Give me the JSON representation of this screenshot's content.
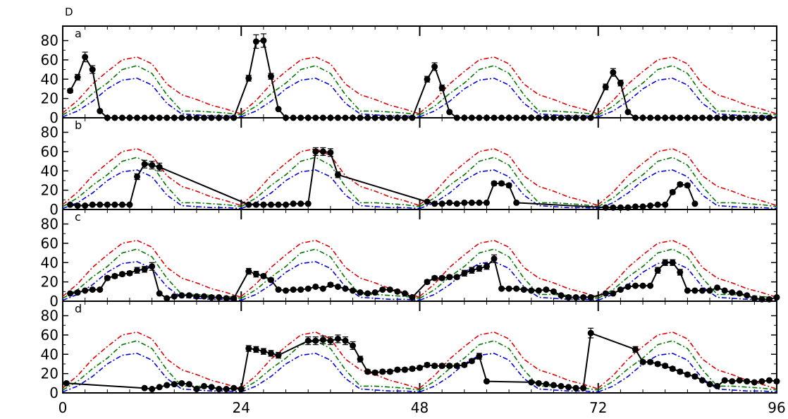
{
  "figure_label": "D",
  "colors": {
    "red": "#dd0000",
    "green": "#007700",
    "blue": "#0000dd",
    "obs": "#000000"
  },
  "chart_data": {
    "type": "line",
    "x_ticks": [
      0,
      24,
      48,
      72,
      96
    ],
    "xlim": [
      0,
      96
    ],
    "y_ticks": [
      0,
      20,
      40,
      60,
      80
    ],
    "ylim": [
      0,
      95
    ],
    "grid": false,
    "legend": "none",
    "curves_x": [
      0,
      2,
      4,
      6,
      8,
      10,
      12,
      14,
      16,
      18,
      20,
      22,
      24
    ],
    "model_red": [
      5,
      18,
      35,
      48,
      60,
      63,
      56,
      35,
      24,
      19,
      13,
      9,
      4
    ],
    "model_green": [
      3,
      12,
      25,
      36,
      50,
      54,
      46,
      24,
      7,
      7,
      6,
      5,
      3
    ],
    "model_blue": [
      1,
      7,
      17,
      30,
      39,
      41,
      34,
      15,
      4,
      3,
      2,
      2,
      1
    ],
    "panels": [
      {
        "label": "a",
        "obs_x": [
          1,
          2,
          3,
          4,
          5,
          6,
          7,
          8,
          9,
          10,
          11,
          12,
          13,
          14,
          15,
          16,
          17,
          18,
          19,
          20,
          21,
          22,
          23,
          25,
          26,
          27,
          28,
          29,
          30,
          31,
          32,
          33,
          34,
          35,
          36,
          37,
          38,
          39,
          40,
          41,
          42,
          43,
          44,
          45,
          46,
          47,
          49,
          50,
          51,
          52,
          53,
          54,
          55,
          56,
          57,
          58,
          59,
          60,
          61,
          62,
          63,
          64,
          65,
          66,
          67,
          68,
          69,
          70,
          71,
          73,
          74,
          75,
          76,
          77,
          78,
          79,
          80,
          81,
          82,
          83,
          84,
          85,
          86,
          87,
          88,
          89,
          90,
          91,
          92,
          93,
          94,
          95
        ],
        "obs_y": [
          28,
          42,
          63,
          50,
          7,
          0,
          0,
          0,
          0,
          0,
          0,
          0,
          0,
          0,
          0,
          0,
          0,
          0,
          0,
          0,
          0,
          0,
          0,
          41,
          79,
          80,
          43,
          9,
          0,
          0,
          0,
          0,
          0,
          0,
          0,
          0,
          0,
          0,
          0,
          0,
          0,
          0,
          0,
          0,
          0,
          0,
          40,
          53,
          31,
          6,
          0,
          0,
          0,
          0,
          0,
          0,
          0,
          0,
          0,
          0,
          0,
          0,
          0,
          0,
          0,
          0,
          0,
          0,
          0,
          32,
          47,
          36,
          6,
          0,
          0,
          0,
          0,
          0,
          0,
          0,
          0,
          0,
          0,
          0,
          0,
          0,
          0,
          0,
          0,
          0,
          0,
          0
        ],
        "obs_err": [
          2,
          3,
          5,
          4,
          1,
          0,
          0,
          0,
          0,
          0,
          0,
          0,
          0,
          0,
          0,
          0,
          0,
          0,
          0,
          0,
          0,
          0,
          0,
          3,
          7,
          7,
          3,
          1,
          0,
          0,
          0,
          0,
          0,
          0,
          0,
          0,
          0,
          0,
          0,
          0,
          0,
          0,
          0,
          0,
          0,
          0,
          3,
          4,
          3,
          1,
          0,
          0,
          0,
          0,
          0,
          0,
          0,
          0,
          0,
          0,
          0,
          0,
          0,
          0,
          0,
          0,
          0,
          0,
          0,
          3,
          4,
          3,
          1,
          0,
          0,
          0,
          0,
          0,
          0,
          0,
          0,
          0,
          0,
          0,
          0,
          0,
          0,
          0,
          0,
          0,
          0,
          0
        ]
      },
      {
        "label": "b",
        "obs_x": [
          1,
          2,
          3,
          4,
          5,
          6,
          7,
          8,
          9,
          10,
          11,
          12,
          13,
          25,
          26,
          27,
          28,
          29,
          30,
          31,
          32,
          33,
          34,
          35,
          36,
          37,
          49,
          50,
          51,
          52,
          53,
          54,
          55,
          56,
          57,
          58,
          59,
          60,
          61,
          73,
          74,
          75,
          76,
          77,
          78,
          79,
          80,
          81,
          82,
          83,
          84,
          85
        ],
        "obs_y": [
          5,
          4,
          4,
          5,
          5,
          5,
          5,
          5,
          5,
          34,
          47,
          46,
          44,
          5,
          5,
          5,
          5,
          5,
          5,
          6,
          6,
          6,
          60,
          60,
          59,
          36,
          8,
          6,
          6,
          7,
          6,
          7,
          7,
          7,
          7,
          27,
          27,
          25,
          7,
          2,
          2,
          2,
          2,
          3,
          3,
          4,
          5,
          5,
          18,
          26,
          25,
          6
        ],
        "obs_err": [
          1,
          1,
          1,
          1,
          1,
          1,
          1,
          1,
          1,
          3,
          4,
          4,
          4,
          1,
          1,
          1,
          1,
          1,
          1,
          1,
          1,
          1,
          4,
          4,
          4,
          3,
          1,
          1,
          1,
          1,
          1,
          1,
          1,
          1,
          1,
          2,
          2,
          2,
          1,
          1,
          1,
          1,
          1,
          1,
          1,
          1,
          1,
          1,
          2,
          2,
          2,
          1
        ]
      },
      {
        "label": "c",
        "obs_x": [
          1,
          2,
          3,
          4,
          5,
          6,
          7,
          8,
          9,
          10,
          11,
          12,
          13,
          14,
          15,
          16,
          17,
          18,
          19,
          20,
          21,
          22,
          23,
          25,
          26,
          27,
          28,
          29,
          30,
          31,
          32,
          33,
          34,
          35,
          36,
          37,
          38,
          39,
          40,
          41,
          42,
          43,
          44,
          45,
          46,
          47,
          49,
          50,
          51,
          52,
          53,
          54,
          55,
          56,
          57,
          58,
          59,
          60,
          61,
          62,
          63,
          64,
          65,
          66,
          67,
          68,
          69,
          70,
          71,
          73,
          74,
          75,
          76,
          77,
          78,
          79,
          80,
          81,
          82,
          83,
          84,
          85,
          86,
          87,
          88,
          89,
          90,
          91,
          92,
          93,
          94,
          95,
          96
        ],
        "obs_y": [
          8,
          9,
          11,
          12,
          12,
          24,
          26,
          28,
          29,
          32,
          33,
          36,
          8,
          3,
          5,
          6,
          6,
          5,
          5,
          4,
          4,
          3,
          3,
          31,
          28,
          26,
          22,
          12,
          11,
          12,
          12,
          13,
          15,
          13,
          17,
          15,
          13,
          11,
          9,
          8,
          9,
          12,
          12,
          10,
          8,
          4,
          20,
          24,
          24,
          25,
          25,
          29,
          32,
          34,
          36,
          44,
          13,
          13,
          13,
          12,
          11,
          11,
          12,
          10,
          6,
          4,
          4,
          4,
          4,
          8,
          8,
          12,
          15,
          16,
          16,
          16,
          32,
          40,
          40,
          30,
          11,
          11,
          11,
          11,
          14,
          11,
          9,
          8,
          6,
          3,
          2,
          2,
          4
        ],
        "obs_err": [
          1,
          1,
          1,
          1,
          1,
          2,
          2,
          2,
          2,
          3,
          3,
          4,
          1,
          1,
          1,
          1,
          1,
          1,
          1,
          1,
          1,
          1,
          1,
          3,
          3,
          2,
          2,
          1,
          1,
          1,
          1,
          1,
          1,
          1,
          2,
          1,
          1,
          1,
          1,
          1,
          1,
          1,
          1,
          1,
          1,
          1,
          2,
          2,
          2,
          2,
          2,
          3,
          3,
          3,
          3,
          4,
          1,
          1,
          1,
          1,
          1,
          1,
          1,
          1,
          1,
          1,
          1,
          1,
          1,
          1,
          1,
          1,
          1,
          1,
          1,
          1,
          3,
          3,
          3,
          3,
          1,
          1,
          1,
          1,
          1,
          1,
          1,
          1,
          1,
          1,
          1,
          1,
          1
        ]
      },
      {
        "label": "d",
        "obs_x": [
          0.5,
          11,
          12,
          13,
          14,
          15,
          16,
          17,
          18,
          19,
          20,
          21,
          22,
          23,
          24,
          25,
          26,
          27,
          28,
          29,
          33,
          34,
          35,
          36,
          37,
          38,
          39,
          40,
          41,
          42,
          43,
          44,
          45,
          46,
          47,
          48,
          49,
          50,
          51,
          52,
          53,
          54,
          55,
          56,
          57,
          63,
          64,
          65,
          66,
          67,
          68,
          69,
          70,
          71,
          77,
          78,
          79,
          80,
          81,
          82,
          83,
          84,
          85,
          86,
          87,
          88,
          89,
          90,
          91,
          92,
          93,
          94,
          95,
          96
        ],
        "obs_y": [
          10,
          5,
          4,
          6,
          8,
          9,
          10,
          9,
          4,
          7,
          6,
          4,
          4,
          5,
          4,
          46,
          45,
          43,
          41,
          39,
          54,
          54,
          55,
          54,
          56,
          54,
          49,
          35,
          22,
          21,
          22,
          22,
          24,
          24,
          25,
          26,
          29,
          28,
          28,
          28,
          28,
          29,
          33,
          38,
          12,
          11,
          10,
          9,
          8,
          7,
          6,
          5,
          5,
          62,
          45,
          32,
          32,
          30,
          28,
          25,
          22,
          19,
          17,
          13,
          9,
          7,
          13,
          12,
          13,
          12,
          11,
          12,
          13,
          12
        ],
        "obs_err": [
          1,
          1,
          1,
          1,
          1,
          1,
          1,
          1,
          1,
          1,
          1,
          1,
          1,
          1,
          1,
          3,
          3,
          3,
          3,
          3,
          4,
          4,
          4,
          4,
          4,
          4,
          4,
          3,
          2,
          2,
          2,
          2,
          2,
          2,
          2,
          2,
          2,
          2,
          2,
          2,
          2,
          2,
          2,
          3,
          1,
          1,
          1,
          1,
          1,
          1,
          1,
          1,
          1,
          5,
          3,
          2,
          2,
          2,
          2,
          2,
          2,
          2,
          2,
          1,
          1,
          1,
          1,
          1,
          1,
          1,
          1,
          1,
          1,
          1
        ]
      }
    ]
  }
}
